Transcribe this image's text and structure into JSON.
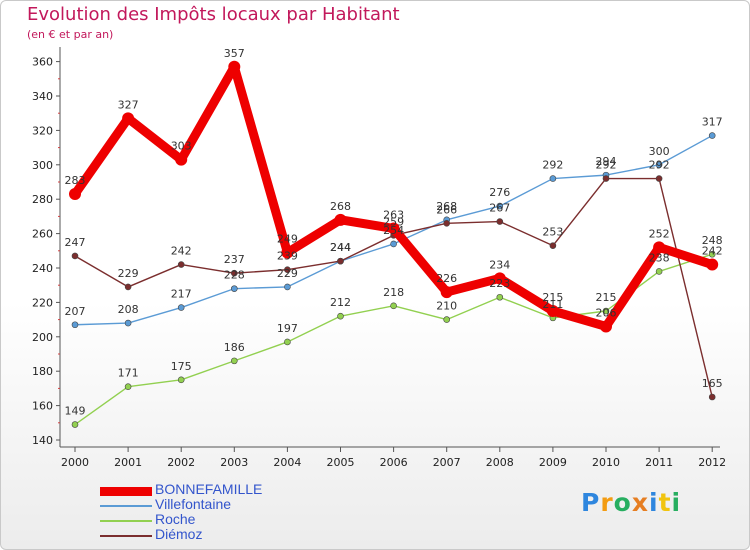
{
  "title": "Evolution des Impôts locaux par Habitant",
  "subtitle": "(en € et par an)",
  "logo": {
    "text": [
      "P",
      "r",
      "o",
      "x",
      "i",
      "t",
      "i"
    ],
    "colors": [
      "#2e86de",
      "#f39c12",
      "#27ae60",
      "#e67e22",
      "#2e86de",
      "#f1c40f",
      "#27ae60"
    ]
  },
  "chart_data": {
    "type": "line",
    "x": [
      "2000",
      "2001",
      "2002",
      "2003",
      "2004",
      "2005",
      "2006",
      "2007",
      "2008",
      "2009",
      "2010",
      "2011",
      "2012"
    ],
    "ylim": [
      140,
      365
    ],
    "yticks": [
      140,
      160,
      180,
      200,
      220,
      240,
      260,
      280,
      300,
      320,
      340,
      360
    ],
    "grid": false,
    "series": [
      {
        "name": "Villefontaine",
        "color": "#5b9bd5",
        "values": [
          207,
          208,
          217,
          228,
          229,
          244,
          254,
          268,
          276,
          292,
          294,
          300,
          317
        ]
      },
      {
        "name": "Roche",
        "color": "#92d050",
        "values": [
          149,
          171,
          175,
          186,
          197,
          212,
          218,
          210,
          223,
          211,
          215,
          238,
          248
        ]
      },
      {
        "name": "Diémoz",
        "color": "#7b2e2e",
        "values": [
          247,
          229,
          242,
          237,
          239,
          244,
          259,
          266,
          267,
          253,
          292,
          292,
          165
        ]
      },
      {
        "name": "BONNEFAMILLE",
        "color": "#ee0000",
        "values": [
          283,
          327,
          303,
          357,
          249,
          268,
          263,
          226,
          234,
          215,
          206,
          252,
          242
        ]
      }
    ],
    "legend_order": [
      "BONNEFAMILLE",
      "Villefontaine",
      "Roche",
      "Diémoz"
    ]
  }
}
